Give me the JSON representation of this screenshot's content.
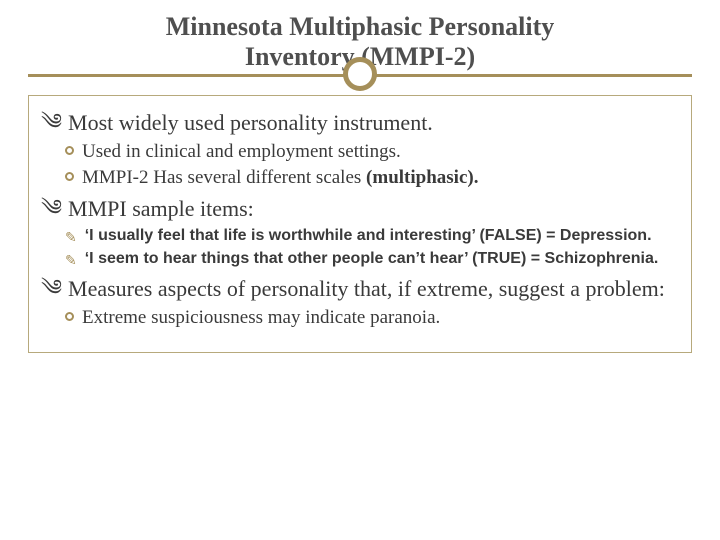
{
  "colors": {
    "accent": "#a58f5a",
    "text": "#3a3a3a",
    "title": "#4f4f4f",
    "border": "#b7a97c",
    "background": "#ffffff"
  },
  "title": {
    "line1": "Minnesota Multiphasic Personality",
    "line2": "Inventory (MMPI-2)",
    "fontsize": 26
  },
  "bullets": [
    {
      "level": 1,
      "text": "Most widely used personality instrument.",
      "children": [
        {
          "level": 2,
          "style": "circle",
          "text": "Used in clinical and employment settings."
        },
        {
          "level": 2,
          "style": "circle",
          "html": "MMPI-2 Has several different scales <b>(multiphasic).</b>"
        }
      ]
    },
    {
      "level": 1,
      "text": "MMPI sample items:",
      "children": [
        {
          "level": 2,
          "style": "pencil",
          "text": "‘I usually feel that life is worthwhile and interesting’ (FALSE) = Depression."
        },
        {
          "level": 2,
          "style": "pencil",
          "text": "‘I seem to hear things that other people can’t hear’  (TRUE) = Schizophrenia."
        }
      ]
    },
    {
      "level": 1,
      "text": "Measures aspects of personality that, if extreme, suggest a problem:",
      "children": [
        {
          "level": 2,
          "style": "circle",
          "text": "Extreme suspiciousness may indicate paranoia."
        }
      ]
    }
  ]
}
